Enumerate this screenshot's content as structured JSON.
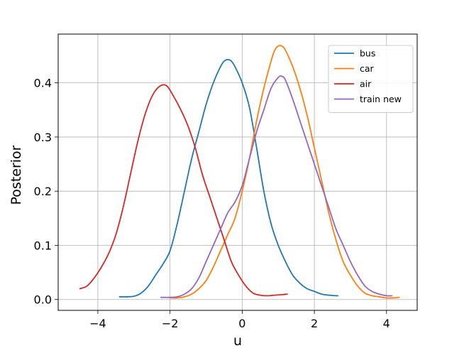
{
  "chart_data": {
    "type": "line",
    "title": "",
    "xlabel": "u",
    "ylabel": "Posterior",
    "xlim": [
      -5.1,
      4.85
    ],
    "ylim": [
      -0.02,
      0.49
    ],
    "xticks": [
      -4,
      -2,
      0,
      2,
      4
    ],
    "xtick_labels": [
      "−4",
      "−2",
      "0",
      "2",
      "4"
    ],
    "yticks": [
      0.0,
      0.1,
      0.2,
      0.3,
      0.4
    ],
    "ytick_labels": [
      "0.0",
      "0.1",
      "0.2",
      "0.3",
      "0.4"
    ],
    "grid": true,
    "legend_position": "top-right",
    "series": [
      {
        "name": "bus",
        "color": "#1f77b4",
        "x": [
          -3.4,
          -3.2,
          -3.0,
          -2.8,
          -2.6,
          -2.4,
          -2.2,
          -2.0,
          -1.8,
          -1.6,
          -1.4,
          -1.2,
          -1.0,
          -0.8,
          -0.6,
          -0.5,
          -0.4,
          -0.3,
          -0.2,
          0.0,
          0.2,
          0.4,
          0.6,
          0.8,
          1.0,
          1.2,
          1.4,
          1.6,
          1.8,
          2.0,
          2.2,
          2.4,
          2.6,
          2.65
        ],
        "y": [
          0.005,
          0.005,
          0.006,
          0.012,
          0.025,
          0.045,
          0.065,
          0.09,
          0.14,
          0.2,
          0.26,
          0.31,
          0.36,
          0.4,
          0.43,
          0.44,
          0.443,
          0.44,
          0.43,
          0.4,
          0.355,
          0.28,
          0.2,
          0.14,
          0.1,
          0.07,
          0.045,
          0.03,
          0.02,
          0.015,
          0.01,
          0.008,
          0.007,
          0.007
        ]
      },
      {
        "name": "car",
        "color": "#ff7f0e",
        "x": [
          -2.0,
          -1.8,
          -1.6,
          -1.4,
          -1.2,
          -1.0,
          -0.8,
          -0.6,
          -0.4,
          -0.2,
          0.0,
          0.2,
          0.4,
          0.6,
          0.8,
          0.9,
          1.0,
          1.1,
          1.2,
          1.4,
          1.6,
          1.8,
          2.0,
          2.2,
          2.4,
          2.6,
          2.8,
          3.0,
          3.2,
          3.4,
          3.6,
          3.8,
          4.0,
          4.2,
          4.35
        ],
        "y": [
          0.003,
          0.003,
          0.005,
          0.01,
          0.02,
          0.035,
          0.06,
          0.09,
          0.12,
          0.15,
          0.2,
          0.26,
          0.33,
          0.39,
          0.44,
          0.46,
          0.468,
          0.468,
          0.46,
          0.43,
          0.39,
          0.34,
          0.28,
          0.22,
          0.16,
          0.11,
          0.07,
          0.045,
          0.025,
          0.012,
          0.007,
          0.005,
          0.003,
          0.003,
          0.004
        ]
      },
      {
        "name": "air",
        "color": "#d62728",
        "x": [
          -4.5,
          -4.3,
          -4.1,
          -3.9,
          -3.7,
          -3.5,
          -3.3,
          -3.1,
          -2.9,
          -2.7,
          -2.5,
          -2.3,
          -2.1,
          -1.9,
          -1.7,
          -1.5,
          -1.3,
          -1.1,
          -0.9,
          -0.7,
          -0.5,
          -0.3,
          -0.1,
          0.1,
          0.3,
          0.5,
          0.7,
          0.9,
          1.1,
          1.25
        ],
        "y": [
          0.02,
          0.025,
          0.04,
          0.06,
          0.085,
          0.12,
          0.17,
          0.23,
          0.29,
          0.34,
          0.375,
          0.393,
          0.395,
          0.375,
          0.35,
          0.32,
          0.28,
          0.23,
          0.19,
          0.15,
          0.11,
          0.07,
          0.045,
          0.025,
          0.012,
          0.008,
          0.007,
          0.008,
          0.009,
          0.01
        ]
      },
      {
        "name": "train new",
        "color": "#9467bd",
        "x": [
          -2.25,
          -2.0,
          -1.8,
          -1.6,
          -1.4,
          -1.2,
          -1.0,
          -0.8,
          -0.6,
          -0.4,
          -0.2,
          0.0,
          0.2,
          0.4,
          0.6,
          0.8,
          1.0,
          1.1,
          1.2,
          1.4,
          1.6,
          1.8,
          2.0,
          2.2,
          2.4,
          2.6,
          2.8,
          3.0,
          3.2,
          3.4,
          3.6,
          3.8,
          4.0,
          4.15
        ],
        "y": [
          0.004,
          0.004,
          0.005,
          0.01,
          0.02,
          0.04,
          0.07,
          0.1,
          0.13,
          0.16,
          0.18,
          0.21,
          0.26,
          0.31,
          0.35,
          0.39,
          0.41,
          0.412,
          0.405,
          0.37,
          0.33,
          0.29,
          0.25,
          0.21,
          0.17,
          0.13,
          0.1,
          0.07,
          0.045,
          0.025,
          0.015,
          0.01,
          0.007,
          0.007
        ]
      }
    ]
  }
}
